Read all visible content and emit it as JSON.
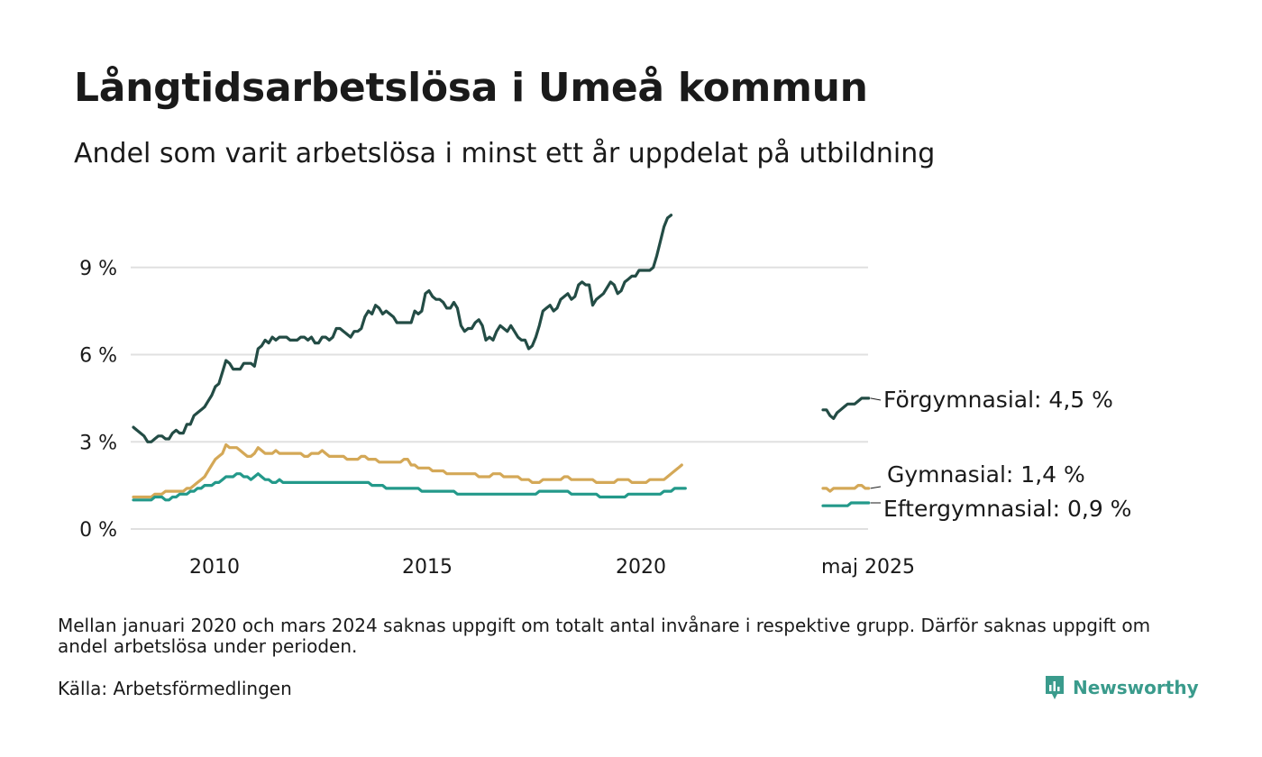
{
  "title": "Långtidsarbetslösa i Umeå kommun",
  "subtitle": "Andel som varit arbetslösa i minst ett år uppdelat på utbildning",
  "footnote": "Mellan januari 2020 och mars 2024 saknas uppgift om totalt antal invånare i respektive grupp. Därför saknas uppgift om andel arbetslösa under perioden.",
  "source": "Källa: Arbetsförmedlingen",
  "brand": "Newsworthy",
  "colors": {
    "forgymnasial": "#234c45",
    "gymnasial": "#d4a857",
    "eftergymnasial": "#23998a",
    "grid": "#e0e0e0",
    "brand": "#3a9b8c"
  },
  "chart_data": {
    "type": "line",
    "y_ticks": [
      "0 %",
      "3 %",
      "6 %",
      "9 %"
    ],
    "y_tick_values": [
      0,
      3,
      6,
      9
    ],
    "x_ticks": [
      "2010",
      "2015",
      "2020",
      "maj 2025"
    ],
    "grid": "horizontal",
    "legend": "direct labels at right end",
    "series": [
      {
        "name": "Förgymnasial",
        "label": "Förgymnasial: 4,5 %",
        "color": "#234c45",
        "segment1_monthly_from_2008_01": [
          3.5,
          3.4,
          3.3,
          3.2,
          3.0,
          3.0,
          3.1,
          3.2,
          3.2,
          3.1,
          3.1,
          3.3,
          3.4,
          3.3,
          3.3,
          3.6,
          3.6,
          3.9,
          4.0,
          4.1,
          4.2,
          4.4,
          4.6,
          4.9,
          5.0,
          5.4,
          5.8,
          5.7,
          5.5,
          5.5,
          5.5,
          5.7,
          5.7,
          5.7,
          5.6,
          6.2,
          6.3,
          6.5,
          6.4,
          6.6,
          6.5,
          6.6,
          6.6,
          6.6,
          6.5,
          6.5,
          6.5,
          6.6,
          6.6,
          6.5,
          6.6,
          6.4,
          6.4,
          6.6,
          6.6,
          6.5,
          6.6,
          6.9,
          6.9,
          6.8,
          6.7,
          6.6,
          6.8,
          6.8,
          6.9,
          7.3,
          7.5,
          7.4,
          7.7,
          7.6,
          7.4,
          7.5,
          7.4,
          7.3,
          7.1,
          7.1,
          7.1,
          7.1,
          7.1,
          7.5,
          7.4,
          7.5,
          8.1,
          8.2,
          8.0,
          7.9,
          7.9,
          7.8,
          7.6,
          7.6,
          7.8,
          7.6,
          7.0,
          6.8,
          6.9,
          6.9,
          7.1,
          7.2,
          7.0,
          6.5,
          6.6,
          6.5,
          6.8,
          7.0,
          6.9,
          6.8,
          7.0,
          6.8,
          6.6,
          6.5,
          6.5,
          6.2,
          6.3,
          6.6,
          7.0,
          7.5,
          7.6,
          7.7,
          7.5,
          7.6,
          7.9,
          8.0,
          8.1,
          7.9,
          8.0,
          8.4,
          8.5,
          8.4,
          8.4,
          7.7,
          7.9,
          8.0,
          8.1,
          8.3,
          8.5,
          8.4,
          8.1,
          8.2,
          8.5,
          8.6,
          8.7,
          8.7,
          8.9,
          8.9,
          8.9,
          8.9,
          9.0,
          9.4,
          9.9,
          10.4,
          10.7,
          10.8
        ],
        "segment2_monthly_from_2024_04": [
          4.1,
          4.1,
          3.9,
          3.8,
          4.0,
          4.1,
          4.2,
          4.3,
          4.3,
          4.3,
          4.4,
          4.5,
          4.5,
          4.5
        ]
      },
      {
        "name": "Gymnasial",
        "label": "Gymnasial: 1,4 %",
        "color": "#d4a857",
        "segment1_monthly_from_2008_01": [
          1.1,
          1.1,
          1.1,
          1.1,
          1.1,
          1.1,
          1.2,
          1.2,
          1.2,
          1.3,
          1.3,
          1.3,
          1.3,
          1.3,
          1.3,
          1.4,
          1.4,
          1.5,
          1.6,
          1.7,
          1.8,
          2.0,
          2.2,
          2.4,
          2.5,
          2.6,
          2.9,
          2.8,
          2.8,
          2.8,
          2.7,
          2.6,
          2.5,
          2.5,
          2.6,
          2.8,
          2.7,
          2.6,
          2.6,
          2.6,
          2.7,
          2.6,
          2.6,
          2.6,
          2.6,
          2.6,
          2.6,
          2.6,
          2.5,
          2.5,
          2.6,
          2.6,
          2.6,
          2.7,
          2.6,
          2.5,
          2.5,
          2.5,
          2.5,
          2.5,
          2.4,
          2.4,
          2.4,
          2.4,
          2.5,
          2.5,
          2.4,
          2.4,
          2.4,
          2.3,
          2.3,
          2.3,
          2.3,
          2.3,
          2.3,
          2.3,
          2.4,
          2.4,
          2.2,
          2.2,
          2.1,
          2.1,
          2.1,
          2.1,
          2.0,
          2.0,
          2.0,
          2.0,
          1.9,
          1.9,
          1.9,
          1.9,
          1.9,
          1.9,
          1.9,
          1.9,
          1.9,
          1.8,
          1.8,
          1.8,
          1.8,
          1.9,
          1.9,
          1.9,
          1.8,
          1.8,
          1.8,
          1.8,
          1.8,
          1.7,
          1.7,
          1.7,
          1.6,
          1.6,
          1.6,
          1.7,
          1.7,
          1.7,
          1.7,
          1.7,
          1.7,
          1.8,
          1.8,
          1.7,
          1.7,
          1.7,
          1.7,
          1.7,
          1.7,
          1.7,
          1.6,
          1.6,
          1.6,
          1.6,
          1.6,
          1.6,
          1.7,
          1.7,
          1.7,
          1.7,
          1.6,
          1.6,
          1.6,
          1.6,
          1.6,
          1.7,
          1.7,
          1.7,
          1.7,
          1.7,
          1.8,
          1.9,
          2.0,
          2.1,
          2.2
        ],
        "segment2_monthly_from_2024_04": [
          1.4,
          1.4,
          1.3,
          1.4,
          1.4,
          1.4,
          1.4,
          1.4,
          1.4,
          1.4,
          1.5,
          1.5,
          1.4,
          1.4
        ]
      },
      {
        "name": "Eftergymnasial",
        "label": "Eftergymnasial: 0,9 %",
        "color": "#23998a",
        "segment1_monthly_from_2008_01": [
          1.0,
          1.0,
          1.0,
          1.0,
          1.0,
          1.0,
          1.1,
          1.1,
          1.1,
          1.0,
          1.0,
          1.1,
          1.1,
          1.2,
          1.2,
          1.2,
          1.3,
          1.3,
          1.4,
          1.4,
          1.5,
          1.5,
          1.5,
          1.6,
          1.6,
          1.7,
          1.8,
          1.8,
          1.8,
          1.9,
          1.9,
          1.8,
          1.8,
          1.7,
          1.8,
          1.9,
          1.8,
          1.7,
          1.7,
          1.6,
          1.6,
          1.7,
          1.6,
          1.6,
          1.6,
          1.6,
          1.6,
          1.6,
          1.6,
          1.6,
          1.6,
          1.6,
          1.6,
          1.6,
          1.6,
          1.6,
          1.6,
          1.6,
          1.6,
          1.6,
          1.6,
          1.6,
          1.6,
          1.6,
          1.6,
          1.6,
          1.6,
          1.5,
          1.5,
          1.5,
          1.5,
          1.4,
          1.4,
          1.4,
          1.4,
          1.4,
          1.4,
          1.4,
          1.4,
          1.4,
          1.4,
          1.3,
          1.3,
          1.3,
          1.3,
          1.3,
          1.3,
          1.3,
          1.3,
          1.3,
          1.3,
          1.2,
          1.2,
          1.2,
          1.2,
          1.2,
          1.2,
          1.2,
          1.2,
          1.2,
          1.2,
          1.2,
          1.2,
          1.2,
          1.2,
          1.2,
          1.2,
          1.2,
          1.2,
          1.2,
          1.2,
          1.2,
          1.2,
          1.2,
          1.3,
          1.3,
          1.3,
          1.3,
          1.3,
          1.3,
          1.3,
          1.3,
          1.3,
          1.2,
          1.2,
          1.2,
          1.2,
          1.2,
          1.2,
          1.2,
          1.2,
          1.1,
          1.1,
          1.1,
          1.1,
          1.1,
          1.1,
          1.1,
          1.1,
          1.2,
          1.2,
          1.2,
          1.2,
          1.2,
          1.2,
          1.2,
          1.2,
          1.2,
          1.2,
          1.3,
          1.3,
          1.3,
          1.4,
          1.4,
          1.4,
          1.4
        ],
        "segment2_monthly_from_2024_04": [
          0.8,
          0.8,
          0.8,
          0.8,
          0.8,
          0.8,
          0.8,
          0.8,
          0.9,
          0.9,
          0.9,
          0.9,
          0.9,
          0.9
        ]
      }
    ]
  }
}
